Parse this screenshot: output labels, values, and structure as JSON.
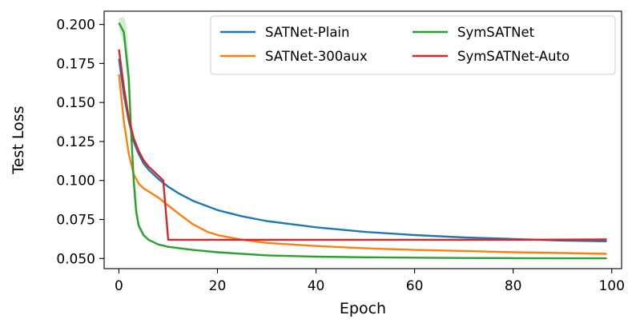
{
  "chart_data": {
    "type": "line",
    "title": "",
    "xlabel": "Epoch",
    "ylabel": "Test Loss",
    "xlim": [
      -3,
      102
    ],
    "ylim": [
      0.0435,
      0.2085
    ],
    "xticks": [
      0,
      20,
      40,
      60,
      80,
      100
    ],
    "xtick_labels": [
      "0",
      "20",
      "40",
      "60",
      "80",
      "100"
    ],
    "yticks": [
      0.05,
      0.075,
      0.1,
      0.125,
      0.15,
      0.175,
      0.2
    ],
    "ytick_labels": [
      "0.050",
      "0.075",
      "0.100",
      "0.125",
      "0.150",
      "0.175",
      "0.200"
    ],
    "grid": false,
    "legend": {
      "position": "top-right",
      "columns": 2
    },
    "series": [
      {
        "name": "SATNet-Plain",
        "color": "#1f77b4",
        "x": [
          0,
          1,
          2,
          3,
          4,
          5,
          6,
          8,
          10,
          12,
          15,
          20,
          25,
          30,
          40,
          50,
          60,
          70,
          80,
          90,
          99
        ],
        "y": [
          0.178,
          0.155,
          0.138,
          0.125,
          0.117,
          0.111,
          0.107,
          0.101,
          0.096,
          0.092,
          0.087,
          0.081,
          0.077,
          0.074,
          0.07,
          0.067,
          0.065,
          0.0635,
          0.0625,
          0.0615,
          0.061
        ]
      },
      {
        "name": "SATNet-300aux",
        "color": "#ff7f0e",
        "x": [
          0,
          1,
          2,
          3,
          4,
          5,
          6,
          8,
          10,
          12,
          15,
          18,
          20,
          25,
          30,
          40,
          50,
          60,
          70,
          80,
          90,
          99
        ],
        "y": [
          0.168,
          0.138,
          0.117,
          0.104,
          0.098,
          0.095,
          0.093,
          0.089,
          0.084,
          0.079,
          0.072,
          0.067,
          0.065,
          0.062,
          0.06,
          0.058,
          0.0565,
          0.0555,
          0.0548,
          0.054,
          0.0535,
          0.053
        ]
      },
      {
        "name": "SymSATNet",
        "color": "#2ca02c",
        "x": [
          0,
          1,
          2,
          2.5,
          3,
          3.5,
          4,
          5,
          6,
          8,
          10,
          15,
          20,
          30,
          40,
          50,
          60,
          70,
          80,
          90,
          99
        ],
        "y": [
          0.201,
          0.195,
          0.165,
          0.13,
          0.1,
          0.08,
          0.071,
          0.065,
          0.062,
          0.059,
          0.0575,
          0.0555,
          0.054,
          0.052,
          0.0512,
          0.0508,
          0.0505,
          0.0503,
          0.0502,
          0.0501,
          0.0501
        ],
        "band_x": [
          0,
          1,
          1.5,
          2,
          3,
          4,
          5
        ],
        "band_low": [
          0.197,
          0.188,
          0.17,
          0.15,
          0.09,
          0.068,
          0.063
        ],
        "band_high": [
          0.204,
          0.205,
          0.2,
          0.18,
          0.11,
          0.075,
          0.067
        ]
      },
      {
        "name": "SymSATNet-Auto",
        "color": "#d62728",
        "x": [
          0,
          1,
          2,
          3,
          4,
          5,
          6,
          7,
          8,
          9,
          10,
          12,
          20,
          40,
          60,
          80,
          99
        ],
        "y": [
          0.184,
          0.16,
          0.14,
          0.127,
          0.119,
          0.113,
          0.109,
          0.106,
          0.103,
          0.1,
          0.062,
          0.062,
          0.062,
          0.062,
          0.062,
          0.062,
          0.0622
        ]
      }
    ]
  }
}
